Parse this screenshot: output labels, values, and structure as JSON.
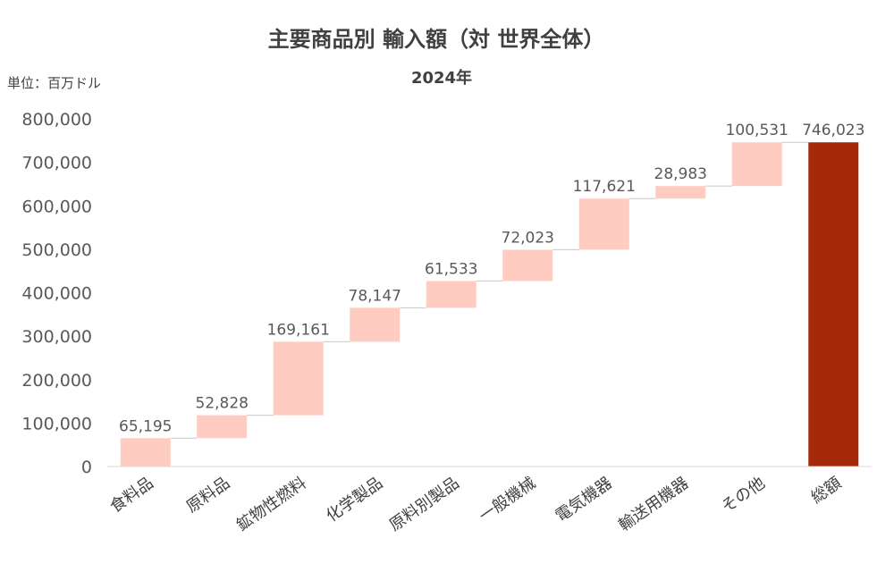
{
  "chart_data": {
    "type": "waterfall",
    "title": "主要商品別 輸入額（対 世界全体）",
    "subtitle": "2024年",
    "unit_label": "単位：百万ドル",
    "categories": [
      "食料品",
      "原料品",
      "鉱物性燃料",
      "化学製品",
      "原料別製品",
      "一般機械",
      "電気機器",
      "輸送用機器",
      "その他",
      "総額"
    ],
    "values": [
      65195,
      52828,
      169161,
      78147,
      61533,
      72023,
      117621,
      28983,
      100531,
      746023
    ],
    "value_labels": [
      "65,195",
      "52,828",
      "169,161",
      "78,147",
      "61,533",
      "72,023",
      "117,621",
      "28,983",
      "100,531",
      "746,023"
    ],
    "is_total": [
      false,
      false,
      false,
      false,
      false,
      false,
      false,
      false,
      false,
      true
    ],
    "ylim": [
      0,
      800000
    ],
    "yticks": [
      0,
      100000,
      200000,
      300000,
      400000,
      500000,
      600000,
      700000,
      800000
    ],
    "ytick_labels": [
      "0",
      "100,000",
      "200,000",
      "300,000",
      "400,000",
      "500,000",
      "600,000",
      "700,000",
      "800,000"
    ],
    "colors": {
      "increment": "#ffccc2",
      "total": "#a52a0a",
      "connector": "#c8c8c8",
      "axis": "#d9d9d9"
    },
    "grid": false,
    "legend": "none"
  }
}
